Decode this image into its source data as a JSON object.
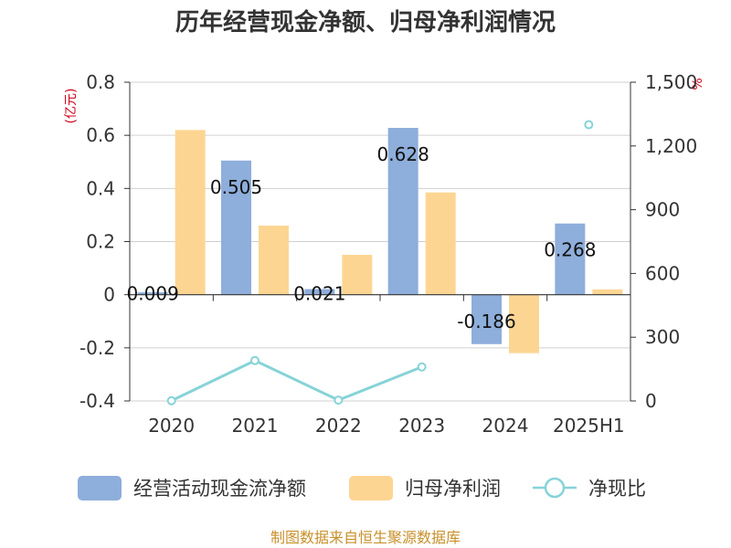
{
  "chart_data": {
    "type": "bar",
    "title": "历年经营现金净额、归母净利润情况",
    "categories": [
      "2020",
      "2021",
      "2022",
      "2023",
      "2024",
      "2025H1"
    ],
    "left_axis": {
      "unit": "(亿元)",
      "ylim": [
        -0.4,
        0.8
      ],
      "ticks": [
        "0.8",
        "0.6",
        "0.4",
        "0.2",
        "0",
        "-0.2",
        "-0.4"
      ],
      "tick_values": [
        0.8,
        0.6,
        0.4,
        0.2,
        0,
        -0.2,
        -0.4
      ]
    },
    "right_axis": {
      "unit": "%",
      "ylim": [
        0,
        1500
      ],
      "ticks": [
        "1,500",
        "1,200",
        "900",
        "600",
        "300",
        "0"
      ],
      "tick_values": [
        1500,
        1200,
        900,
        600,
        300,
        0
      ]
    },
    "series": [
      {
        "name": "经营活动现金流净额",
        "type": "bar",
        "axis": "left",
        "color": "#8eaedb",
        "values": [
          0.009,
          0.505,
          0.021,
          0.628,
          -0.186,
          0.268
        ],
        "labels": [
          "0.009",
          "0.505",
          "0.021",
          "0.628",
          "-0.186",
          "0.268"
        ]
      },
      {
        "name": "归母净利润",
        "type": "bar",
        "axis": "left",
        "color": "#fdd592",
        "values": [
          0.62,
          0.26,
          0.15,
          0.385,
          -0.22,
          0.02
        ]
      },
      {
        "name": "净现比",
        "type": "line",
        "axis": "right",
        "color": "#86d3d8",
        "values": [
          1,
          190,
          4,
          160,
          null,
          1300
        ]
      }
    ],
    "grid": true,
    "legend_position": "bottom"
  },
  "footer": {
    "source": "制图数据来自恒生聚源数据库"
  }
}
